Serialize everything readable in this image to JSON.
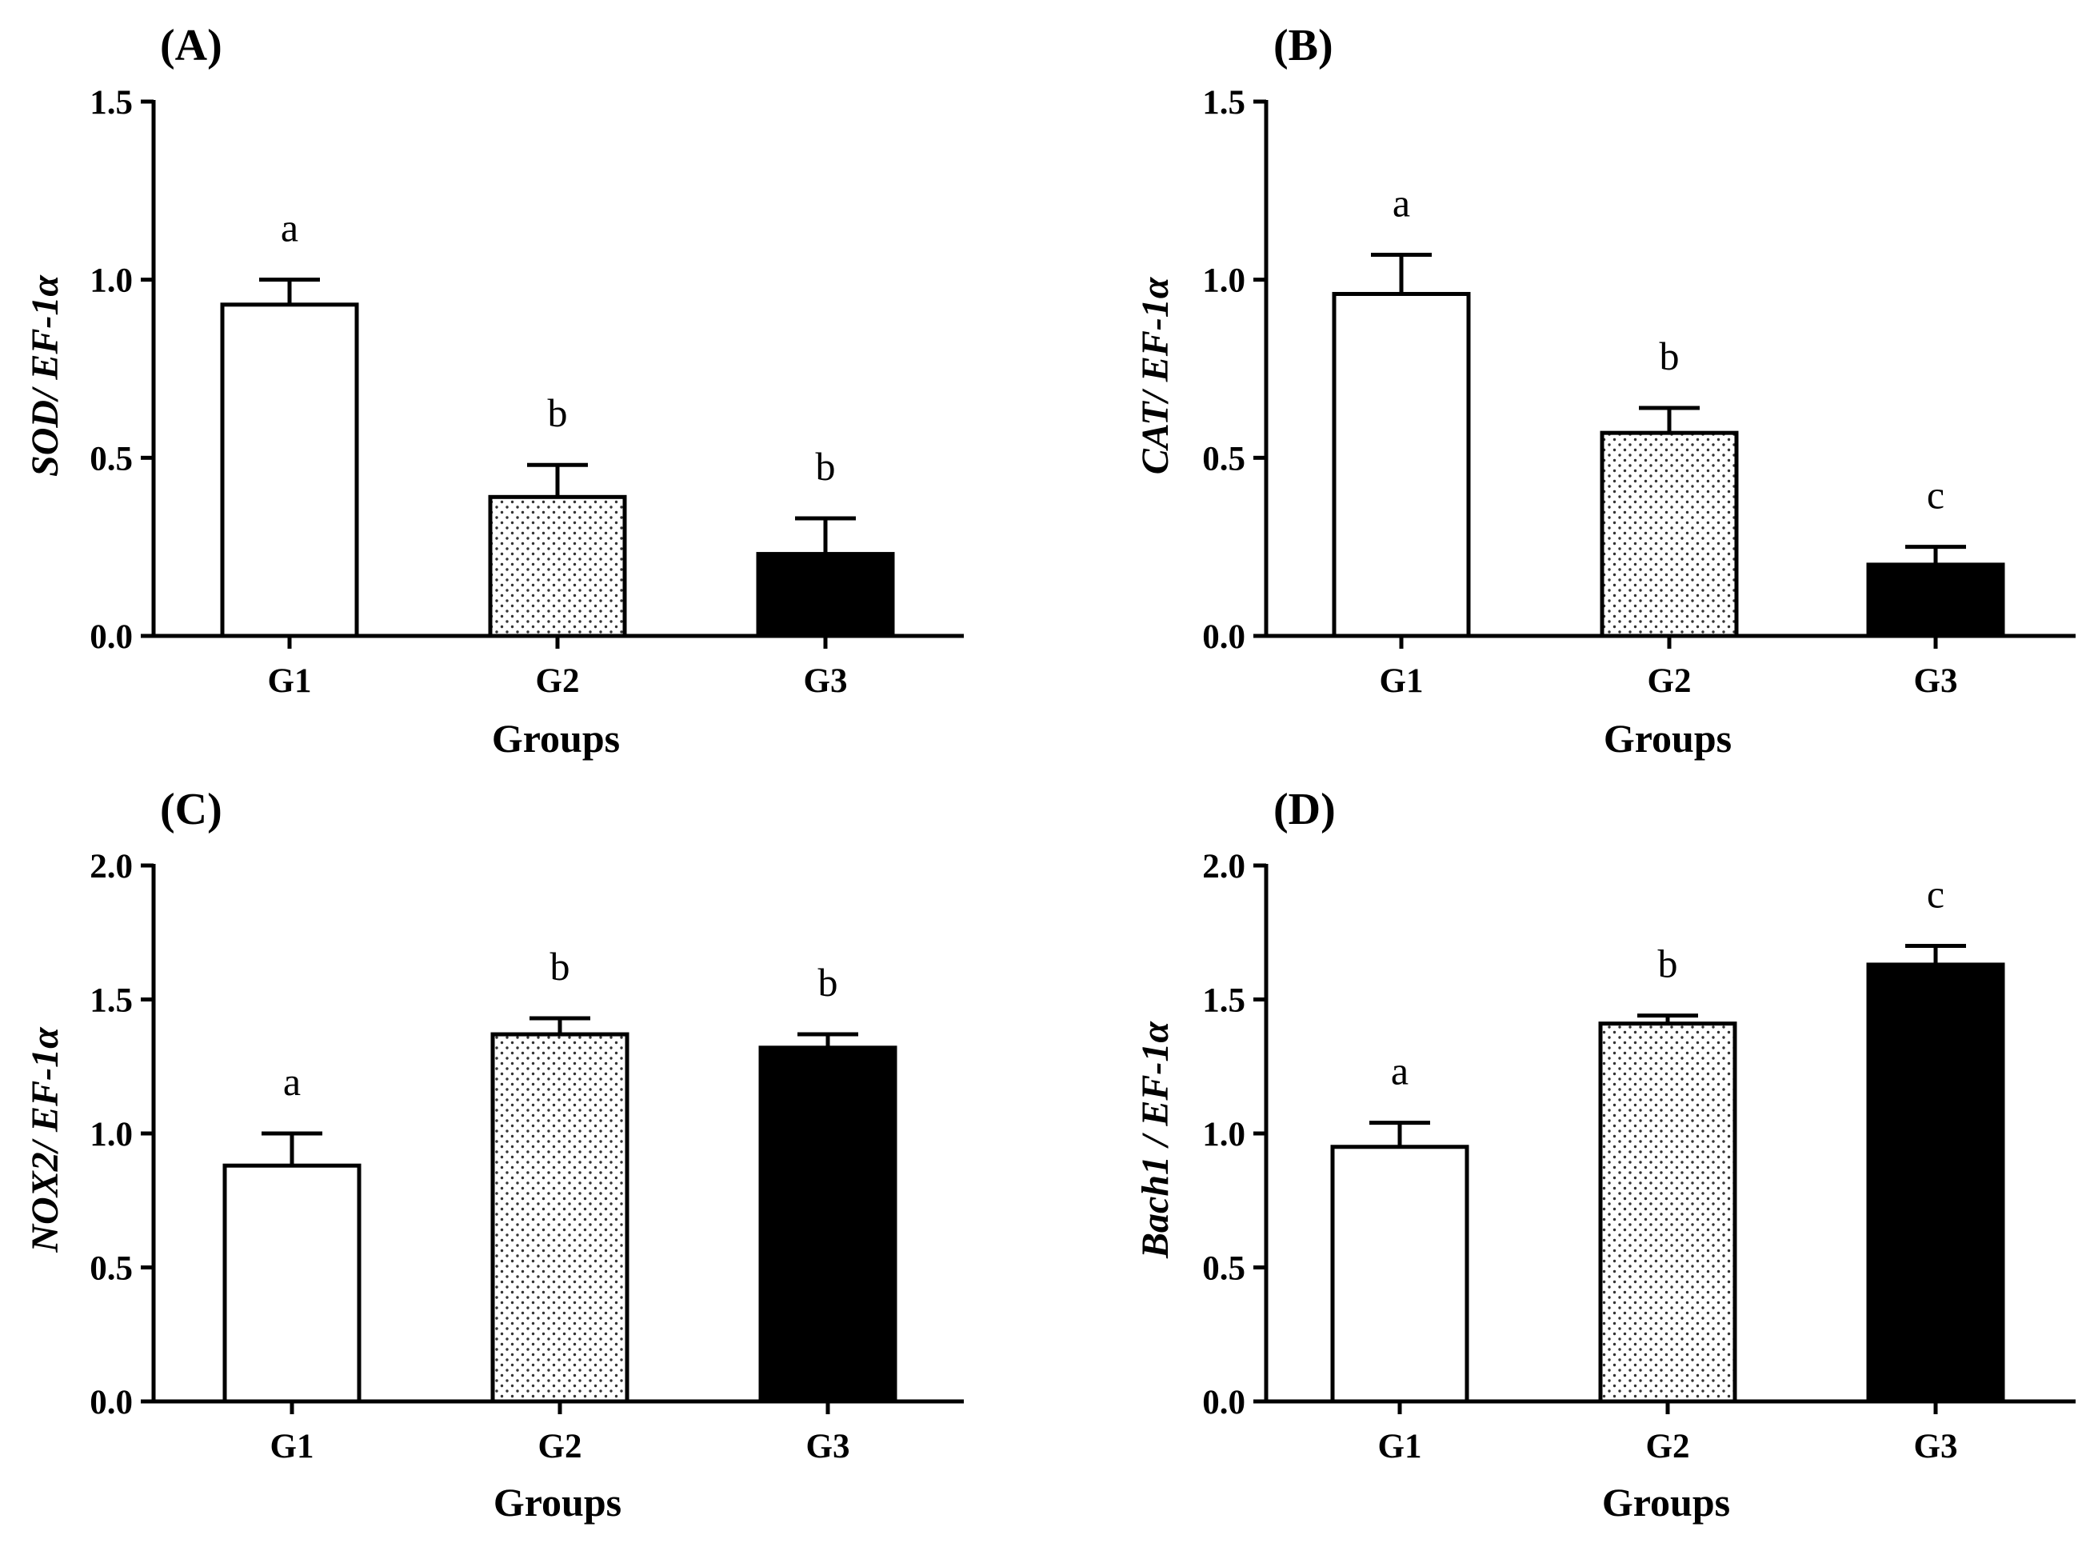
{
  "chart_data": [
    {
      "type": "bar",
      "panel_label": "(A)",
      "ylabel": "SOD/ EF-1α",
      "xlabel": "Groups",
      "ylim": [
        0,
        1.5
      ],
      "yticks": [
        "0.0",
        "0.5",
        "1.0",
        "1.5"
      ],
      "categories": [
        "G1",
        "G2",
        "G3"
      ],
      "values": [
        0.93,
        0.39,
        0.23
      ],
      "errors": [
        0.07,
        0.09,
        0.1
      ],
      "significance": [
        "a",
        "b",
        "b"
      ],
      "fills": [
        "white",
        "dotted",
        "black"
      ]
    },
    {
      "type": "bar",
      "panel_label": "(B)",
      "ylabel": "CAT/ EF-1α",
      "xlabel": "Groups",
      "ylim": [
        0,
        1.5
      ],
      "yticks": [
        "0.0",
        "0.5",
        "1.0",
        "1.5"
      ],
      "categories": [
        "G1",
        "G2",
        "G3"
      ],
      "values": [
        0.96,
        0.57,
        0.2
      ],
      "errors": [
        0.11,
        0.07,
        0.05
      ],
      "significance": [
        "a",
        "b",
        "c"
      ],
      "fills": [
        "white",
        "dotted",
        "black"
      ]
    },
    {
      "type": "bar",
      "panel_label": "(C)",
      "ylabel": "NOX2/ EF-1α",
      "xlabel": "Groups",
      "ylim": [
        0,
        2.0
      ],
      "yticks": [
        "0.0",
        "0.5",
        "1.0",
        "1.5",
        "2.0"
      ],
      "categories": [
        "G1",
        "G2",
        "G3"
      ],
      "values": [
        0.88,
        1.37,
        1.32
      ],
      "errors": [
        0.12,
        0.06,
        0.05
      ],
      "significance": [
        "a",
        "b",
        "b"
      ],
      "fills": [
        "white",
        "dotted",
        "black"
      ]
    },
    {
      "type": "bar",
      "panel_label": "(D)",
      "ylabel": "Bach1 / EF-1α",
      "xlabel": "Groups",
      "ylim": [
        0,
        2.0
      ],
      "yticks": [
        "0.0",
        "0.5",
        "1.0",
        "1.5",
        "2.0"
      ],
      "categories": [
        "G1",
        "G2",
        "G3"
      ],
      "values": [
        0.95,
        1.41,
        1.63
      ],
      "errors": [
        0.09,
        0.03,
        0.07
      ],
      "significance": [
        "a",
        "b",
        "c"
      ],
      "fills": [
        "white",
        "dotted",
        "black"
      ]
    }
  ]
}
